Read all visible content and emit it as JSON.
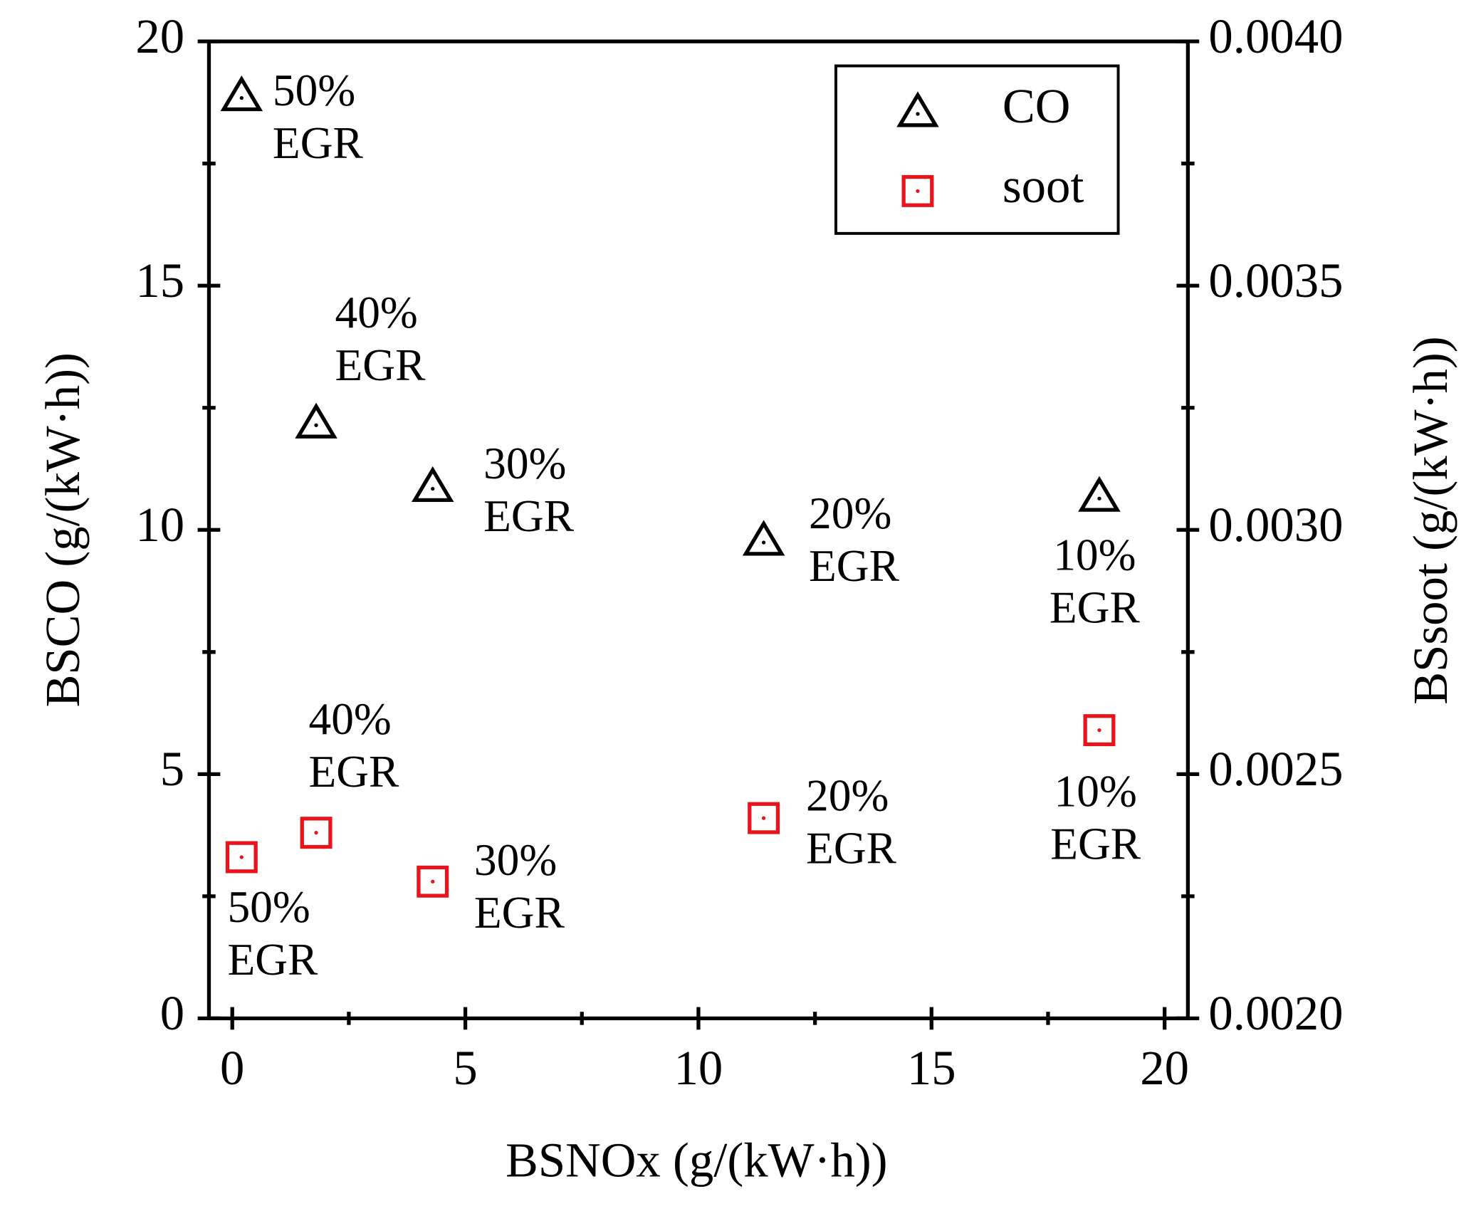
{
  "chart_data": {
    "type": "scatter",
    "xlabel": "BSNOx (g/(kW·h))",
    "ylabel": "BSCO (g/(kW·h))",
    "y2label": "BSsoot (g/(kW·h))",
    "xlim": [
      -0.5,
      20.5
    ],
    "xticks": [
      0,
      5,
      10,
      15,
      20
    ],
    "ylim": [
      0,
      20
    ],
    "yticks": [
      0,
      5,
      10,
      15,
      20
    ],
    "y2lim": [
      0.002,
      0.004
    ],
    "y2ticks": [
      {
        "value": 0.002,
        "label": "0.0020"
      },
      {
        "value": 0.0025,
        "label": "0.0025"
      },
      {
        "value": 0.003,
        "label": "0.0030"
      },
      {
        "value": 0.0035,
        "label": "0.0035"
      },
      {
        "value": 0.004,
        "label": "0.0040"
      }
    ],
    "legend": "upper right",
    "series": [
      {
        "name": "CO",
        "color": "#000000",
        "marker": "triangle",
        "x": [
          0.2,
          1.8,
          4.3,
          11.4,
          18.6
        ],
        "values": [
          18.9,
          12.2,
          10.9,
          9.8,
          10.7
        ],
        "point_labels": [
          [
            "50%",
            "EGR"
          ],
          [
            "40%",
            "EGR"
          ],
          [
            "30%",
            "EGR"
          ],
          [
            "20%",
            "EGR"
          ],
          [
            "10%",
            "EGR"
          ]
        ]
      },
      {
        "name": "soot",
        "color": "#e8141c",
        "marker": "square",
        "axis": "y2",
        "x": [
          0.2,
          1.8,
          4.3,
          11.4,
          18.6
        ],
        "values": [
          0.00233,
          0.00238,
          0.00228,
          0.00241,
          0.00259
        ],
        "point_labels": [
          [
            "50%",
            "EGR"
          ],
          [
            "40%",
            "EGR"
          ],
          [
            "30%",
            "EGR"
          ],
          [
            "20%",
            "EGR"
          ],
          [
            "10%",
            "EGR"
          ]
        ]
      }
    ]
  }
}
